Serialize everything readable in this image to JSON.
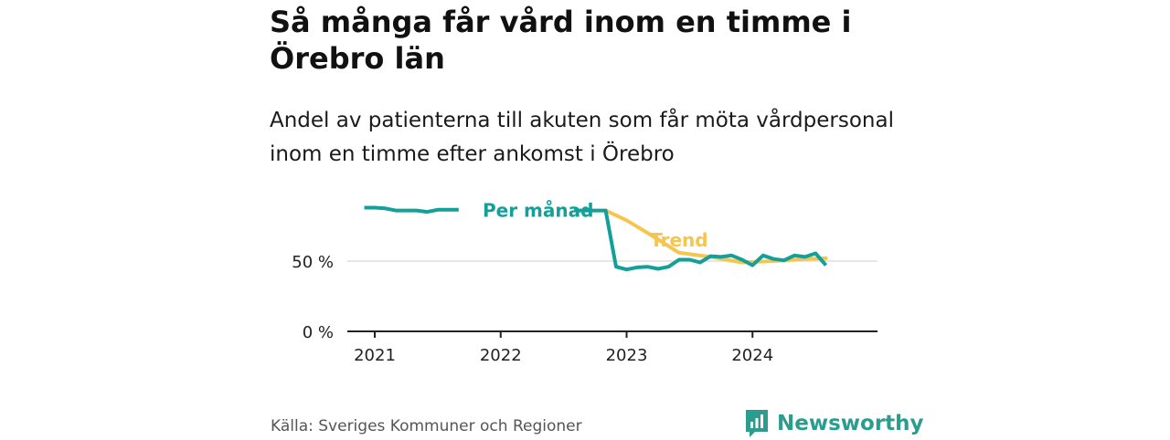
{
  "header": {
    "title": "Så många får vård inom en timme i Örebro län",
    "subtitle": "Andel av patienterna till akuten som får möta vårdpersonal inom en timme efter ankomst i Örebro"
  },
  "footer": {
    "source": "Källa: Sveriges Kommuner och Regioner",
    "brand": "Newsworthy",
    "brand_icon": "bar-chart-bubble-icon"
  },
  "colors": {
    "monthly": "#14a098",
    "trend": "#f7c54e",
    "axis": "#222222",
    "grid": "#dddddd"
  },
  "chart_data": {
    "type": "line",
    "title": "Så många får vård inom en timme i Örebro län",
    "subtitle": "Andel av patienterna till akuten som får möta vårdpersonal inom en timme efter ankomst i Örebro",
    "xlabel": "",
    "ylabel": "",
    "ylim": [
      0,
      100
    ],
    "y_ticks": [
      {
        "value": 0,
        "label": "0 %"
      },
      {
        "value": 50,
        "label": "50 %"
      }
    ],
    "x_ticks": [
      {
        "value": "2021-01",
        "label": "2021"
      },
      {
        "value": "2022-01",
        "label": "2022"
      },
      {
        "value": "2023-01",
        "label": "2023"
      },
      {
        "value": "2024-01",
        "label": "2024"
      }
    ],
    "grid": "horizontal at 50 %",
    "series": [
      {
        "name": "Per månad",
        "color": "#14a098",
        "points": [
          {
            "x": "2020-12",
            "y": 88
          },
          {
            "x": "2021-01",
            "y": 88
          },
          {
            "x": "2021-02",
            "y": 87.5
          },
          {
            "x": "2021-03",
            "y": 86
          },
          {
            "x": "2021-04",
            "y": 86
          },
          {
            "x": "2021-05",
            "y": 86
          },
          {
            "x": "2021-06",
            "y": 85
          },
          {
            "x": "2021-07",
            "y": 86.5
          },
          {
            "x": "2021-08",
            "y": 86.5
          },
          {
            "x": "2021-09",
            "y": 86.5
          },
          {
            "x": "2022-08",
            "y": 86
          },
          {
            "x": "2022-09",
            "y": 86
          },
          {
            "x": "2022-10",
            "y": 86
          },
          {
            "x": "2022-11",
            "y": 86
          },
          {
            "x": "2022-12",
            "y": 46
          },
          {
            "x": "2023-01",
            "y": 44
          },
          {
            "x": "2023-02",
            "y": 45.5
          },
          {
            "x": "2023-03",
            "y": 46
          },
          {
            "x": "2023-04",
            "y": 44.5
          },
          {
            "x": "2023-05",
            "y": 46
          },
          {
            "x": "2023-06",
            "y": 51
          },
          {
            "x": "2023-07",
            "y": 51
          },
          {
            "x": "2023-08",
            "y": 49
          },
          {
            "x": "2023-09",
            "y": 53.5
          },
          {
            "x": "2023-10",
            "y": 53
          },
          {
            "x": "2023-11",
            "y": 54
          },
          {
            "x": "2023-12",
            "y": 51
          },
          {
            "x": "2024-01",
            "y": 47
          },
          {
            "x": "2024-02",
            "y": 54
          },
          {
            "x": "2024-03",
            "y": 51.5
          },
          {
            "x": "2024-04",
            "y": 50.5
          },
          {
            "x": "2024-05",
            "y": 54
          },
          {
            "x": "2024-06",
            "y": 53
          },
          {
            "x": "2024-07",
            "y": 55.5
          },
          {
            "x": "2024-08",
            "y": 47
          }
        ]
      },
      {
        "name": "Trend",
        "color": "#f7c54e",
        "points": [
          {
            "x": "2022-11",
            "y": 86
          },
          {
            "x": "2023-01",
            "y": 79
          },
          {
            "x": "2023-03",
            "y": 70
          },
          {
            "x": "2023-06",
            "y": 56
          },
          {
            "x": "2023-09",
            "y": 53
          },
          {
            "x": "2023-12",
            "y": 49
          },
          {
            "x": "2024-03",
            "y": 50
          },
          {
            "x": "2024-06",
            "y": 51.5
          },
          {
            "x": "2024-08",
            "y": 52
          }
        ]
      }
    ],
    "annotations": [
      {
        "text": "Per månad",
        "series": "Per månad",
        "x": "2022-03",
        "y": 86
      },
      {
        "text": "Trend",
        "series": "Trend",
        "x": "2023-06",
        "y": 65
      }
    ]
  }
}
